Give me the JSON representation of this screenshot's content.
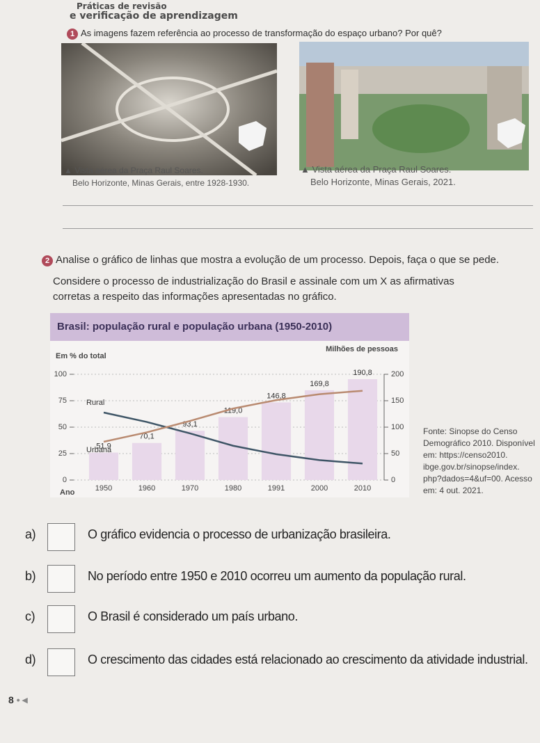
{
  "header": {
    "line1": "Práticas de revisão",
    "line2": "e verificação de aprendizagem"
  },
  "question1": {
    "number": "1",
    "text": "As imagens fazem referência ao processo de transformação do espaço urbano? Por quê?",
    "images": [
      {
        "caption_line1": "Vista aérea da Praça Raul Soares.",
        "caption_line2": "Belo Horizonte, Minas Gerais, entre 1928-1930."
      },
      {
        "caption_line1": "Vista aérea da Praça Raul Soares.",
        "caption_line2": "Belo Horizonte, Minas Gerais, 2021."
      }
    ]
  },
  "question2": {
    "number": "2",
    "intro": "Analise o gráfico de linhas que mostra a evolução de um processo. Depois, faça o que se pede.",
    "instruction_line1": "Considere o processo de industrialização do Brasil e assinale com um X as afirmativas",
    "instruction_line2": "corretas a respeito das informações apresentadas no gráfico.",
    "source_lines": [
      "Fonte: Sinopse do Censo",
      "Demográfico 2010. Disponível",
      "em: https://censo2010.",
      "ibge.gov.br/sinopse/index.",
      "php?dados=4&uf=00. Acesso",
      "em: 4 out. 2021."
    ],
    "options": [
      {
        "letter": "a)",
        "text": "O gráfico evidencia o processo de urbanização brasileira."
      },
      {
        "letter": "b)",
        "text": "No período entre 1950 e 2010 ocorreu um aumento da população rural."
      },
      {
        "letter": "c)",
        "text": "O Brasil é considerado um país urbano."
      },
      {
        "letter": "d)",
        "text": "O crescimento das cidades está relacionado ao crescimento da atividade industrial."
      }
    ]
  },
  "chart_data": {
    "type": "bar",
    "title": "Brasil: população rural e população urbana (1950-2010)",
    "y_label": "Em % do total",
    "y2_label": "Milhões de pessoas",
    "x_label": "Ano",
    "categories": [
      "1950",
      "1960",
      "1970",
      "1980",
      "1991",
      "2000",
      "2010"
    ],
    "ylim": [
      0,
      100
    ],
    "yticks": [
      0,
      25,
      50,
      75,
      100
    ],
    "y2lim": [
      0,
      200
    ],
    "y2ticks": [
      0,
      50,
      100,
      150,
      200
    ],
    "grid": true,
    "series": [
      {
        "type": "bar",
        "axis": "y2",
        "color": "#e8d8ea",
        "values": [
          51.9,
          70.1,
          93.1,
          119.0,
          146.8,
          169.8,
          190.8
        ],
        "value_labels": [
          "51,9",
          "70,1",
          "93,1",
          "119,0",
          "146,8",
          "169,8",
          "190,8"
        ]
      },
      {
        "type": "line",
        "name": "Rural",
        "color": "#3e5566",
        "values": [
          63.8,
          54.9,
          44.1,
          32.4,
          24.4,
          18.8,
          15.6
        ]
      },
      {
        "type": "line",
        "name": "Urbana",
        "color": "#b98a70",
        "values": [
          36.2,
          45.1,
          55.9,
          67.6,
          75.6,
          81.2,
          84.4
        ]
      }
    ]
  },
  "footer": {
    "page": "8"
  }
}
